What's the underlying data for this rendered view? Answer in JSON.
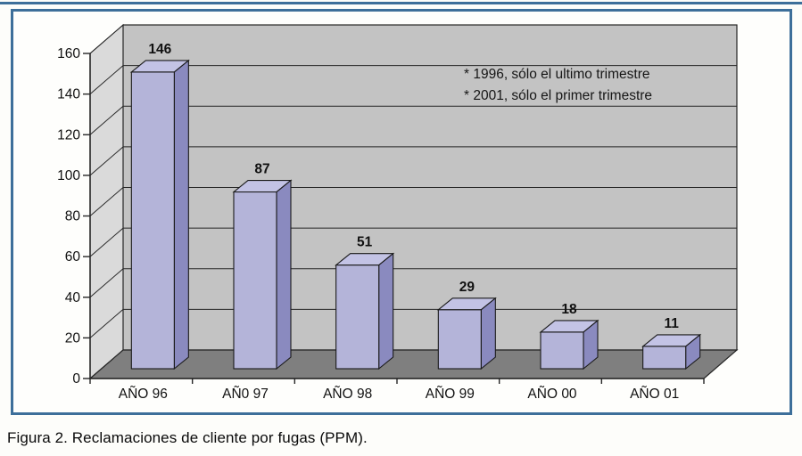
{
  "page": {
    "caption": "Figura 2. Reclamaciones de cliente por fugas (PPM).",
    "rule_color": "#3d6f9a",
    "border_color": "#3d6f9a"
  },
  "chart_data": {
    "type": "bar",
    "projection": "3d",
    "title": "",
    "xlabel": "",
    "ylabel": "",
    "categories": [
      "AÑO 96",
      "AÑ0 97",
      "AÑO 98",
      "AÑO 99",
      "AÑO 00",
      "AÑO 01"
    ],
    "values": [
      146,
      87,
      51,
      29,
      18,
      11
    ],
    "ylim": [
      0,
      160
    ],
    "yticks": [
      0,
      20,
      40,
      60,
      80,
      100,
      120,
      140,
      160
    ],
    "grid": true,
    "legend": "none",
    "annotations": [
      "* 1996, sólo el ultimo trimestre",
      "* 2001, sólo el primer trimestre"
    ],
    "colors": {
      "bar_front": "#b4b4d9",
      "bar_side": "#8a8abf",
      "bar_top": "#c3c3e5",
      "bar_outline": "#1a1a1a",
      "wall_back": "#c3c3c3",
      "wall_side": "#dadada",
      "floor": "#7f7f7f",
      "line": "#262626",
      "text": "#111111"
    }
  }
}
